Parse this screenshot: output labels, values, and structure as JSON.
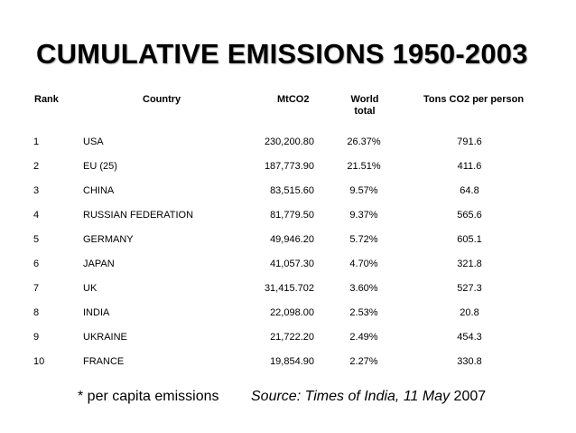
{
  "title": "CUMULATIVE EMISSIONS 1950-2003",
  "headers": {
    "rank": "Rank",
    "country": "Country",
    "mtco2": "MtCO2",
    "world_total": "World total",
    "tons_per_person": "Tons CO2 per person"
  },
  "rows": [
    {
      "rank": "1",
      "country": "USA",
      "mtco2": "230,200.80",
      "world": "26.37%",
      "tons": "791.6"
    },
    {
      "rank": "2",
      "country": "EU (25)",
      "mtco2": "187,773.90",
      "world": "21.51%",
      "tons": "411.6"
    },
    {
      "rank": "3",
      "country": "CHINA",
      "mtco2": "83,515.60",
      "world": "9.57%",
      "tons": "64.8"
    },
    {
      "rank": "4",
      "country": "RUSSIAN FEDERATION",
      "mtco2": "81,779.50",
      "world": "9.37%",
      "tons": "565.6"
    },
    {
      "rank": "5",
      "country": "GERMANY",
      "mtco2": "49,946.20",
      "world": "5.72%",
      "tons": "605.1"
    },
    {
      "rank": "6",
      "country": "JAPAN",
      "mtco2": "41,057.30",
      "world": "4.70%",
      "tons": "321.8"
    },
    {
      "rank": "7",
      "country": "UK",
      "mtco2": "31,415.702",
      "world": "3.60%",
      "tons": "527.3"
    },
    {
      "rank": "8",
      "country": "INDIA",
      "mtco2": "22,098.00",
      "world": "2.53%",
      "tons": "20.8"
    },
    {
      "rank": "9",
      "country": "UKRAINE",
      "mtco2": "21,722.20",
      "world": "2.49%",
      "tons": "454.3"
    },
    {
      "rank": "10",
      "country": "FRANCE",
      "mtco2": "19,854.90",
      "world": "2.27%",
      "tons": "330.8"
    }
  ],
  "footnote": "* per capita emissions",
  "source": {
    "italic": "Source: Times of India, 11 May",
    "year": " 2007"
  }
}
